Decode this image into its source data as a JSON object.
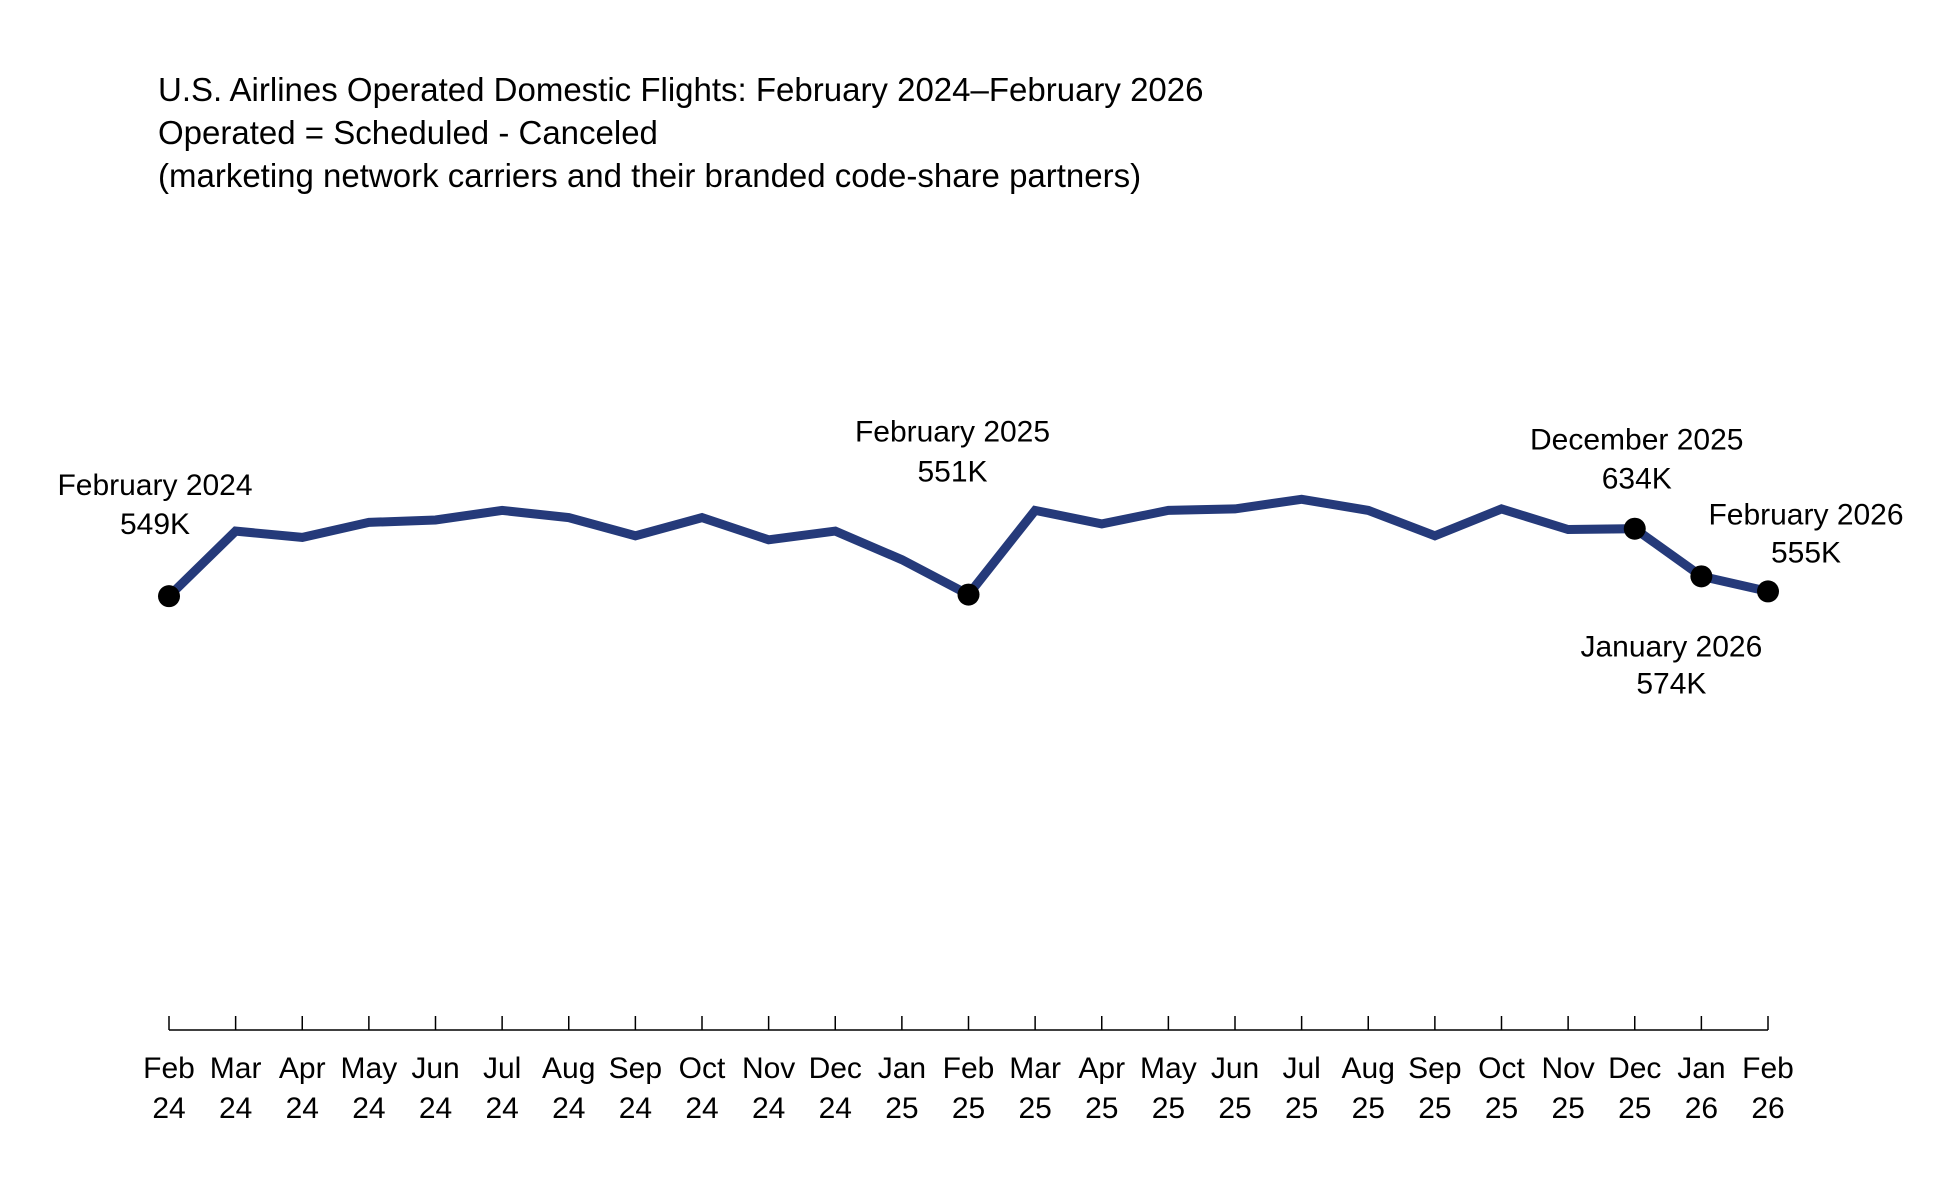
{
  "chart_data": {
    "type": "line",
    "title": "U.S. Airlines Operated Domestic Flights: February 2024–February 2026",
    "subtitle": [
      "Operated = Scheduled - Canceled",
      "(marketing network carriers and their branded code-share partners)"
    ],
    "x": [
      "Feb 24",
      "Mar 24",
      "Apr 24",
      "May 24",
      "Jun 24",
      "Jul 24",
      "Aug 24",
      "Sep 24",
      "Oct 24",
      "Nov 24",
      "Dec 24",
      "Jan 25",
      "Feb 25",
      "Mar 25",
      "Apr 25",
      "May 25",
      "Jun 25",
      "Jul 25",
      "Aug 25",
      "Sep 25",
      "Oct 25",
      "Nov 25",
      "Dec 25",
      "Jan 26",
      "Feb 26"
    ],
    "tick_labels": [
      [
        "Feb",
        "24"
      ],
      [
        "Mar",
        "24"
      ],
      [
        "Apr",
        "24"
      ],
      [
        "May",
        "24"
      ],
      [
        "Jun",
        "24"
      ],
      [
        "Jul",
        "24"
      ],
      [
        "Aug",
        "24"
      ],
      [
        "Sep",
        "24"
      ],
      [
        "Oct",
        "24"
      ],
      [
        "Nov",
        "24"
      ],
      [
        "Dec",
        "24"
      ],
      [
        "Jan",
        "25"
      ],
      [
        "Feb",
        "25"
      ],
      [
        "Mar",
        "25"
      ],
      [
        "Apr",
        "25"
      ],
      [
        "May",
        "25"
      ],
      [
        "Jun",
        "25"
      ],
      [
        "Jul",
        "25"
      ],
      [
        "Aug",
        "25"
      ],
      [
        "Sep",
        "25"
      ],
      [
        "Oct",
        "25"
      ],
      [
        "Nov",
        "25"
      ],
      [
        "Dec",
        "25"
      ],
      [
        "Jan",
        "26"
      ],
      [
        "Feb",
        "26"
      ]
    ],
    "series": [
      {
        "values": [
          549,
          631,
          623,
          642,
          645,
          657,
          648,
          625,
          648,
          620,
          631,
          595,
          551,
          657,
          640,
          657,
          659,
          671,
          657,
          625,
          659,
          633,
          634,
          574,
          555
        ],
        "color": "#253a7a"
      }
    ],
    "ylim": [
      0,
      1300
    ],
    "annotations": [
      {
        "index": 0,
        "lines": [
          "February 2024",
          "549K"
        ],
        "position": "above"
      },
      {
        "index": 12,
        "lines": [
          "February 2025",
          "551K"
        ],
        "position": "above"
      },
      {
        "index": 22,
        "lines": [
          "December 2025",
          "634K"
        ],
        "position": "above"
      },
      {
        "index": 23,
        "lines": [
          "January 2026",
          "574K"
        ],
        "position": "below"
      },
      {
        "index": 24,
        "lines": [
          "February 2026",
          "555K"
        ],
        "position": "above-right"
      }
    ],
    "grid": false,
    "legend": "none"
  }
}
